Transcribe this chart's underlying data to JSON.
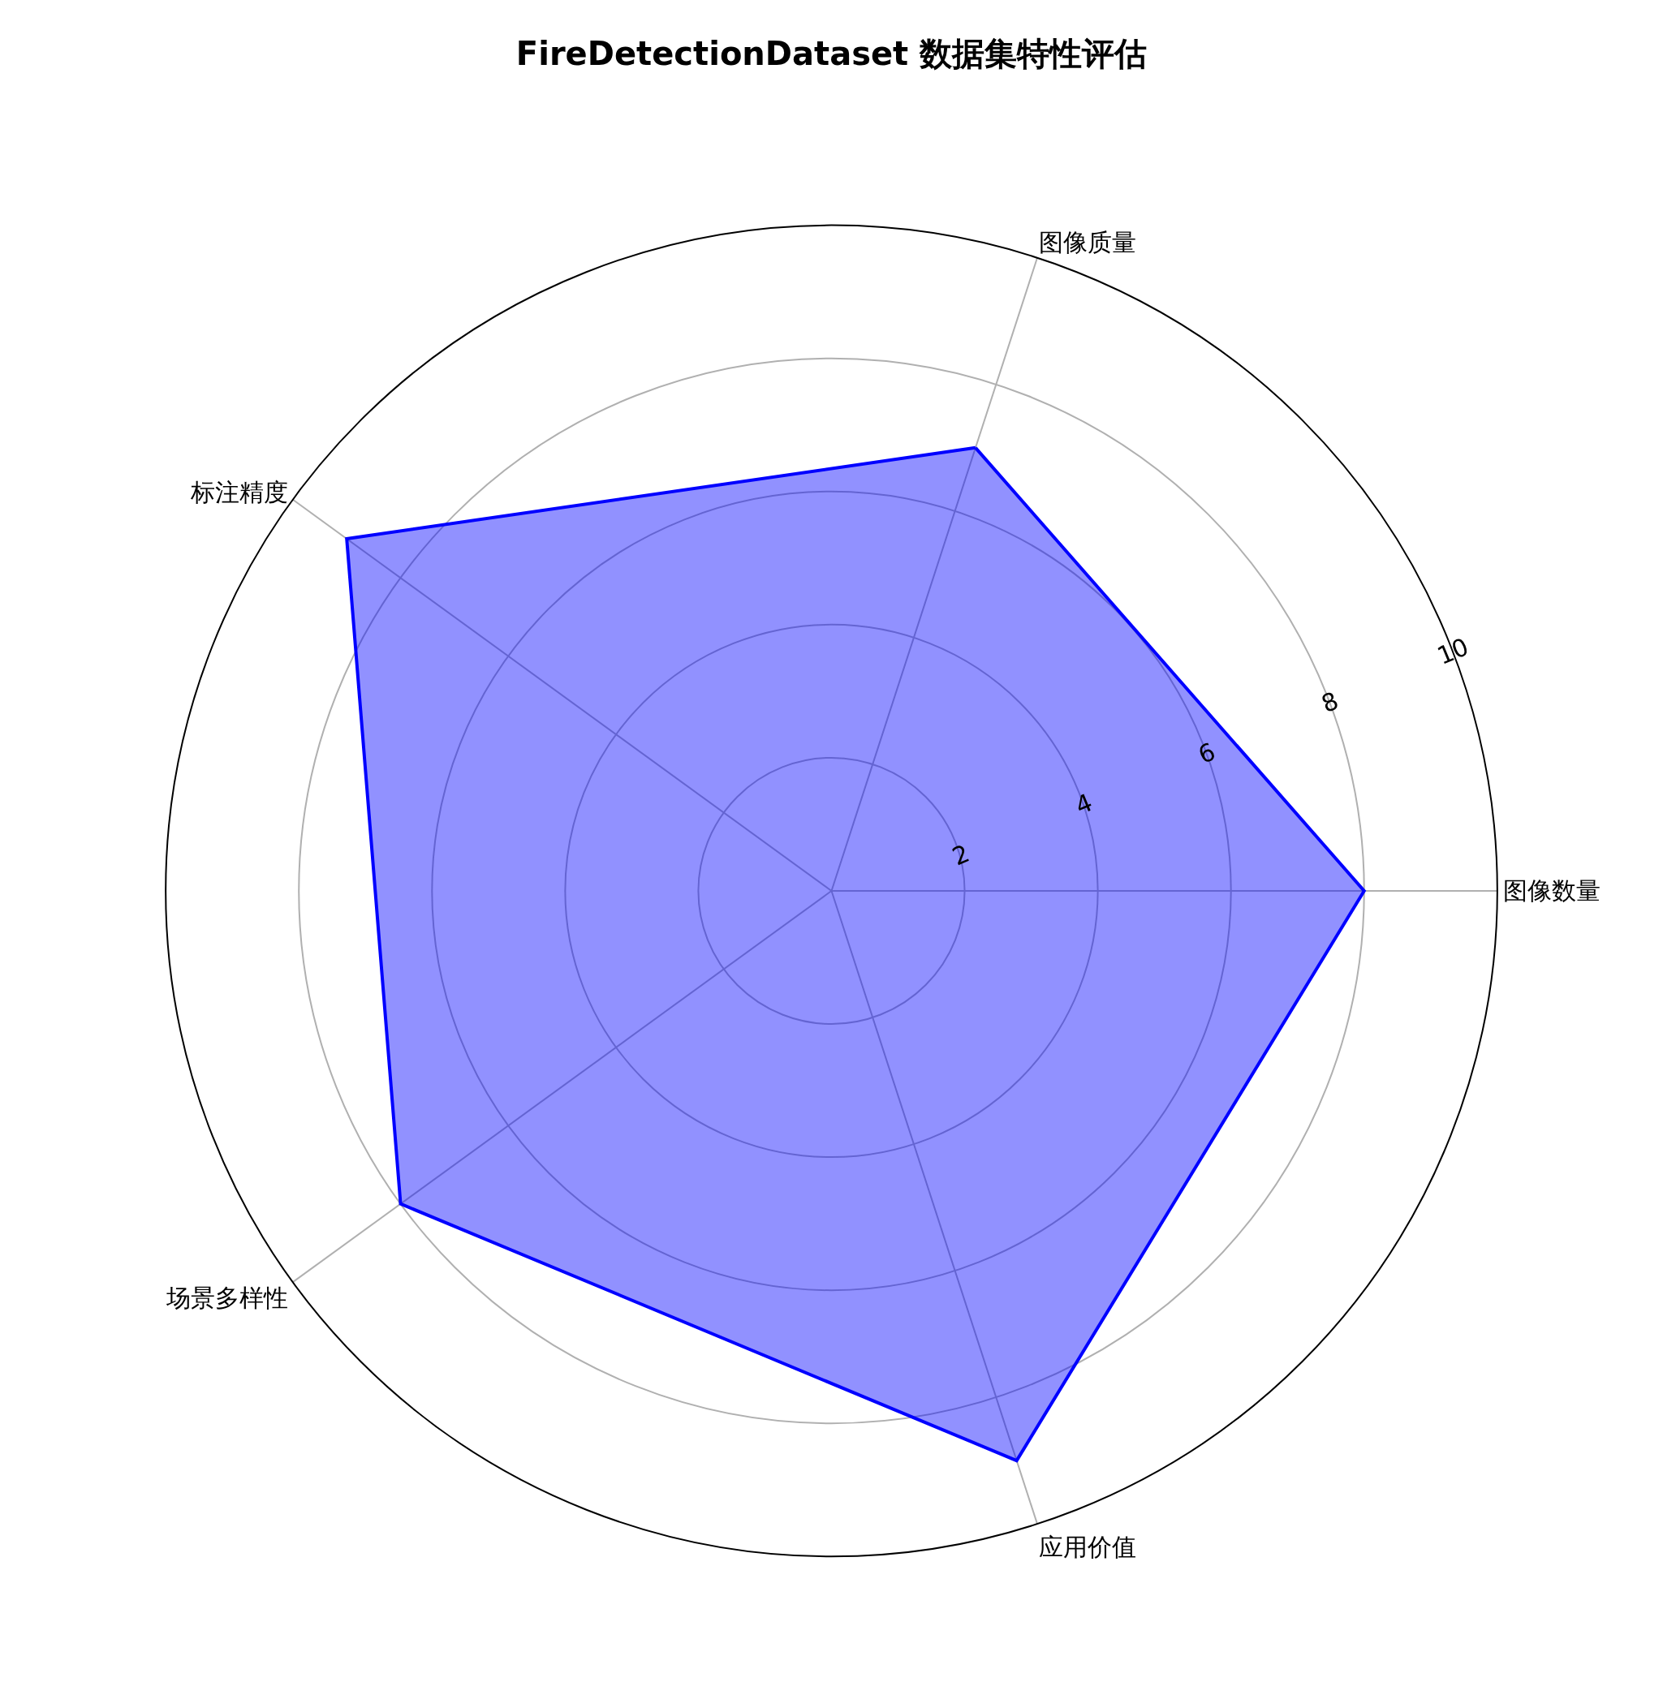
{
  "chart_data": {
    "type": "radar",
    "title": "FireDetectionDataset 数据集特性评估",
    "categories": [
      "图像质量",
      "图像数量",
      "应用价值",
      "场景多样性",
      "标注精度"
    ],
    "series": [
      {
        "color": "#0000ff",
        "values": [
          7,
          8,
          9,
          8,
          9
        ]
      }
    ],
    "ylim": [
      0,
      10
    ],
    "yticks": [
      2,
      4,
      6,
      8,
      10
    ],
    "grid": true,
    "marker": "none",
    "line_style": "solid"
  }
}
